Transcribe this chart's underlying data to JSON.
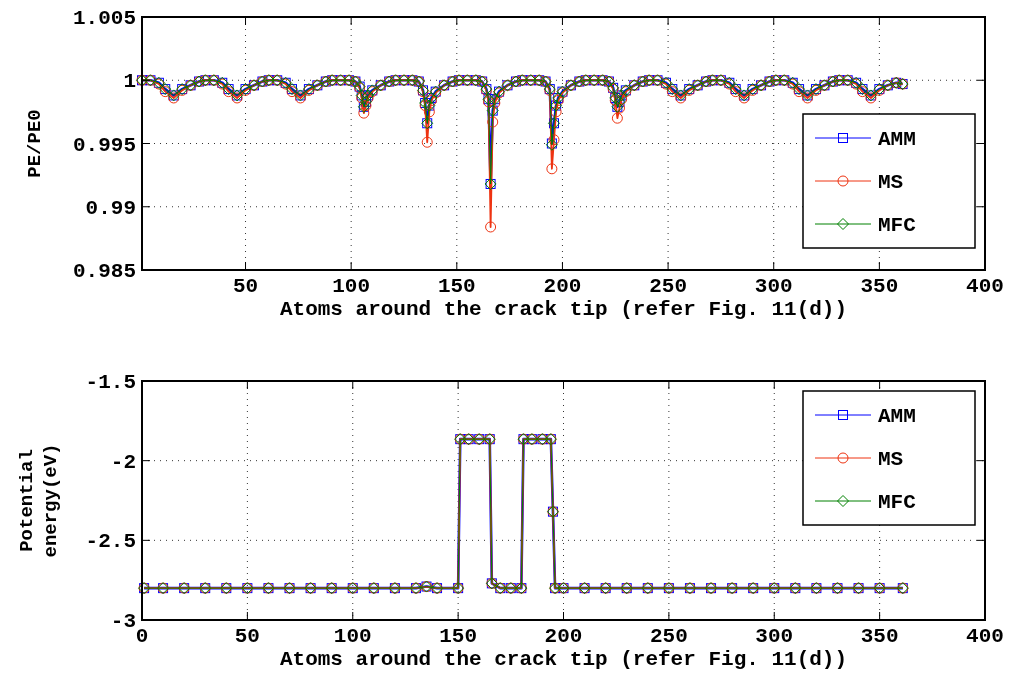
{
  "chart_data": [
    {
      "type": "line",
      "xlabel": "Atoms around the crack tip (refer Fig. 11(d))",
      "ylabel": "PE/PE0",
      "xlim": [
        1,
        400
      ],
      "xticks": [
        50,
        100,
        150,
        200,
        250,
        300,
        350,
        400
      ],
      "ylim": [
        0.985,
        1.005
      ],
      "yticks": [
        0.985,
        0.99,
        0.995,
        1,
        1.005
      ],
      "grid": true,
      "legend": "right",
      "x": [
        1,
        5,
        9,
        12,
        16,
        20,
        24,
        28,
        31,
        35,
        39,
        42,
        46,
        50,
        54,
        58,
        61,
        65,
        69,
        72,
        76,
        80,
        84,
        88,
        91,
        95,
        99,
        102,
        104,
        105,
        106,
        107,
        108,
        110,
        114,
        118,
        121,
        125,
        129,
        132,
        134,
        135,
        136,
        137,
        138,
        140,
        144,
        148,
        151,
        155,
        159,
        162,
        164,
        165,
        166,
        167,
        168,
        170,
        174,
        178,
        181,
        185,
        189,
        192,
        194,
        195,
        196,
        197,
        198,
        200,
        204,
        208,
        211,
        215,
        219,
        222,
        224,
        225,
        226,
        227,
        228,
        230,
        234,
        238,
        241,
        245,
        249,
        252,
        256,
        260,
        264,
        268,
        271,
        275,
        279,
        282,
        286,
        290,
        294,
        298,
        301,
        305,
        309,
        312,
        316,
        320,
        324,
        328,
        331,
        335,
        339,
        342,
        346,
        350,
        354,
        358,
        361
      ],
      "series": [
        {
          "name": "AMM",
          "color": "#0000ff",
          "marker": "square",
          "values": [
            1.0,
            1.0,
            0.9998,
            0.9993,
            0.9988,
            0.9993,
            0.9996,
            0.9999,
            1.0,
            1.0,
            0.9998,
            0.9993,
            0.9988,
            0.9993,
            0.9996,
            0.9999,
            1.0,
            1.0,
            0.9998,
            0.9993,
            0.9988,
            0.9993,
            0.9996,
            0.9999,
            1.0,
            1.0,
            1.0,
            0.9999,
            0.9995,
            0.9988,
            0.9979,
            0.9983,
            0.9988,
            0.9992,
            0.9996,
            0.9999,
            1.0,
            1.0,
            1.0,
            0.9999,
            0.9992,
            0.9982,
            0.9966,
            0.998,
            0.9986,
            0.9991,
            0.9996,
            0.9999,
            1.0,
            1.0,
            1.0,
            0.9999,
            0.9993,
            0.9985,
            0.9918,
            0.9976,
            0.9985,
            0.9991,
            0.9996,
            0.9999,
            1.0,
            1.0,
            1.0,
            0.9999,
            0.9993,
            0.995,
            0.9966,
            0.998,
            0.9986,
            0.9991,
            0.9996,
            0.9999,
            1.0,
            1.0,
            1.0,
            0.9999,
            0.9994,
            0.9986,
            0.9979,
            0.9983,
            0.9988,
            0.9992,
            0.9996,
            0.9999,
            1.0,
            1.0,
            0.9998,
            0.9993,
            0.9988,
            0.9993,
            0.9996,
            0.9999,
            1.0,
            1.0,
            0.9998,
            0.9993,
            0.9988,
            0.9993,
            0.9996,
            0.9999,
            1.0,
            1.0,
            0.9998,
            0.9993,
            0.9988,
            0.9993,
            0.9996,
            0.9999,
            1.0,
            1.0,
            0.9998,
            0.9993,
            0.9988,
            0.9993,
            0.9996,
            0.9998,
            0.9997
          ]
        },
        {
          "name": "MS",
          "color": "#ee3311",
          "marker": "circle",
          "values": [
            1.0,
            1.0,
            0.9997,
            0.9991,
            0.9986,
            0.9992,
            0.9996,
            0.9999,
            1.0,
            1.0,
            0.9997,
            0.9991,
            0.9986,
            0.9992,
            0.9996,
            0.9999,
            1.0,
            1.0,
            0.9997,
            0.9991,
            0.9986,
            0.9992,
            0.9996,
            0.9999,
            1.0,
            1.0,
            1.0,
            0.9999,
            0.9994,
            0.9986,
            0.9974,
            0.998,
            0.9986,
            0.9991,
            0.9996,
            0.9999,
            1.0,
            1.0,
            1.0,
            0.9999,
            0.9991,
            0.998,
            0.9951,
            0.9975,
            0.9984,
            0.999,
            0.9996,
            0.9999,
            1.0,
            1.0,
            1.0,
            0.9999,
            0.9992,
            0.9983,
            0.9884,
            0.9967,
            0.9982,
            0.999,
            0.9996,
            0.9999,
            1.0,
            1.0,
            1.0,
            0.9999,
            0.9992,
            0.993,
            0.9953,
            0.9975,
            0.9984,
            0.999,
            0.9996,
            0.9999,
            1.0,
            1.0,
            1.0,
            0.9999,
            0.9993,
            0.9984,
            0.997,
            0.9978,
            0.9985,
            0.9991,
            0.9996,
            0.9999,
            1.0,
            1.0,
            0.9997,
            0.9991,
            0.9986,
            0.9992,
            0.9996,
            0.9999,
            1.0,
            1.0,
            0.9997,
            0.9991,
            0.9986,
            0.9992,
            0.9996,
            0.9999,
            1.0,
            1.0,
            0.9997,
            0.9991,
            0.9986,
            0.9992,
            0.9996,
            0.9999,
            1.0,
            1.0,
            0.9997,
            0.9991,
            0.9986,
            0.9992,
            0.9996,
            0.9998,
            0.9997
          ]
        },
        {
          "name": "MFC",
          "color": "#008000",
          "marker": "diamond",
          "values": [
            1.0,
            1.0,
            0.9998,
            0.9993,
            0.9988,
            0.9993,
            0.9996,
            0.9999,
            1.0,
            1.0,
            0.9998,
            0.9993,
            0.9988,
            0.9993,
            0.9996,
            0.9999,
            1.0,
            1.0,
            0.9998,
            0.9993,
            0.9988,
            0.9993,
            0.9996,
            0.9999,
            1.0,
            1.0,
            1.0,
            0.9999,
            0.9995,
            0.9988,
            0.9979,
            0.9983,
            0.9988,
            0.9992,
            0.9996,
            0.9999,
            1.0,
            1.0,
            1.0,
            0.9999,
            0.9992,
            0.9982,
            0.9966,
            0.998,
            0.9986,
            0.9991,
            0.9996,
            0.9999,
            1.0,
            1.0,
            1.0,
            0.9999,
            0.9993,
            0.9985,
            0.9918,
            0.9976,
            0.9985,
            0.9991,
            0.9996,
            0.9999,
            1.0,
            1.0,
            1.0,
            0.9999,
            0.9993,
            0.9949,
            0.9966,
            0.998,
            0.9986,
            0.9991,
            0.9996,
            0.9999,
            1.0,
            1.0,
            1.0,
            0.9999,
            0.9994,
            0.9986,
            0.9979,
            0.9983,
            0.9988,
            0.9992,
            0.9996,
            0.9999,
            1.0,
            1.0,
            0.9998,
            0.9993,
            0.9988,
            0.9993,
            0.9996,
            0.9999,
            1.0,
            1.0,
            0.9998,
            0.9993,
            0.9988,
            0.9993,
            0.9996,
            0.9999,
            1.0,
            1.0,
            0.9998,
            0.9993,
            0.9988,
            0.9993,
            0.9996,
            0.9999,
            1.0,
            1.0,
            0.9998,
            0.9993,
            0.9988,
            0.9993,
            0.9996,
            0.9998,
            0.9997
          ]
        }
      ]
    },
    {
      "type": "line",
      "xlabel": "Atoms around the crack tip (refer Fig. 11(d))",
      "ylabel": "Potential energy(eV)",
      "xlim": [
        0,
        400
      ],
      "xticks": [
        0,
        50,
        100,
        150,
        200,
        250,
        300,
        350,
        400
      ],
      "ylim": [
        -3,
        -1.5
      ],
      "yticks": [
        -3,
        -2.5,
        -2,
        -1.5
      ],
      "grid": true,
      "legend": "top right",
      "x": [
        1,
        10,
        20,
        30,
        40,
        50,
        60,
        70,
        80,
        90,
        100,
        110,
        120,
        130,
        135,
        140,
        150,
        151,
        155,
        160,
        165,
        166,
        170,
        175,
        180,
        181,
        185,
        190,
        194,
        195,
        196,
        200,
        210,
        220,
        230,
        240,
        250,
        260,
        270,
        280,
        290,
        300,
        310,
        320,
        330,
        340,
        350,
        361
      ],
      "series": [
        {
          "name": "AMM",
          "color": "#0000ff",
          "marker": "square",
          "values": [
            -2.8,
            -2.8,
            -2.8,
            -2.8,
            -2.8,
            -2.8,
            -2.8,
            -2.8,
            -2.8,
            -2.8,
            -2.8,
            -2.8,
            -2.8,
            -2.8,
            -2.79,
            -2.8,
            -2.8,
            -1.865,
            -1.865,
            -1.865,
            -1.865,
            -2.77,
            -2.8,
            -2.8,
            -2.8,
            -1.865,
            -1.865,
            -1.865,
            -1.865,
            -2.32,
            -2.8,
            -2.8,
            -2.8,
            -2.8,
            -2.8,
            -2.8,
            -2.8,
            -2.8,
            -2.8,
            -2.8,
            -2.8,
            -2.8,
            -2.8,
            -2.8,
            -2.8,
            -2.8,
            -2.8,
            -2.8
          ]
        },
        {
          "name": "MS",
          "color": "#ee3311",
          "marker": "circle",
          "values": [
            -2.8,
            -2.8,
            -2.8,
            -2.8,
            -2.8,
            -2.8,
            -2.8,
            -2.8,
            -2.8,
            -2.8,
            -2.8,
            -2.8,
            -2.8,
            -2.8,
            -2.79,
            -2.8,
            -2.8,
            -1.865,
            -1.865,
            -1.865,
            -1.865,
            -2.77,
            -2.8,
            -2.8,
            -2.8,
            -1.865,
            -1.865,
            -1.865,
            -1.865,
            -2.32,
            -2.8,
            -2.8,
            -2.8,
            -2.8,
            -2.8,
            -2.8,
            -2.8,
            -2.8,
            -2.8,
            -2.8,
            -2.8,
            -2.8,
            -2.8,
            -2.8,
            -2.8,
            -2.8,
            -2.8,
            -2.8
          ]
        },
        {
          "name": "MFC",
          "color": "#008000",
          "marker": "diamond",
          "values": [
            -2.8,
            -2.8,
            -2.8,
            -2.8,
            -2.8,
            -2.8,
            -2.8,
            -2.8,
            -2.8,
            -2.8,
            -2.8,
            -2.8,
            -2.8,
            -2.8,
            -2.79,
            -2.8,
            -2.8,
            -1.865,
            -1.865,
            -1.865,
            -1.865,
            -2.77,
            -2.8,
            -2.8,
            -2.8,
            -1.865,
            -1.865,
            -1.865,
            -1.865,
            -2.32,
            -2.8,
            -2.8,
            -2.8,
            -2.8,
            -2.8,
            -2.8,
            -2.8,
            -2.8,
            -2.8,
            -2.8,
            -2.8,
            -2.8,
            -2.8,
            -2.8,
            -2.8,
            -2.8,
            -2.8,
            -2.8
          ]
        }
      ]
    }
  ]
}
